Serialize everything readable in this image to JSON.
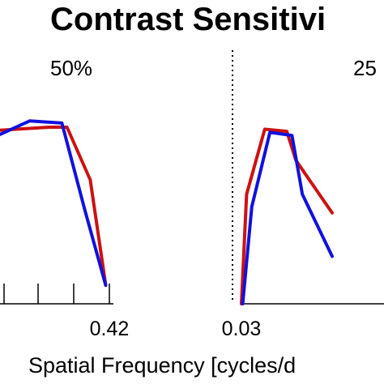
{
  "chart_data": {
    "type": "line",
    "title": "Contrast Sensitivi",
    "xlabel": "Spatial Frequency [cycles/d",
    "ylabel": "",
    "colors": [
      "#cc1111",
      "#1111dd"
    ],
    "panels": [
      {
        "label": "50%",
        "xlim": [
          0.01,
          0.45
        ],
        "ylim": [
          0,
          1
        ],
        "x_tick_labels": [
          {
            "value": 0.42,
            "label": "0.42"
          }
        ],
        "series": [
          {
            "color": "#cc1111",
            "points": [
              [
                0.01,
                0.84
              ],
              [
                0.2,
                0.855
              ],
              [
                0.27,
                0.855
              ],
              [
                0.36,
                0.6
              ],
              [
                0.42,
                0.09
              ]
            ]
          },
          {
            "color": "#1111dd",
            "points": [
              [
                0.01,
                0.82
              ],
              [
                0.125,
                0.885
              ],
              [
                0.25,
                0.875
              ],
              [
                0.34,
                0.45
              ],
              [
                0.42,
                0.09
              ]
            ]
          }
        ]
      },
      {
        "label": "25",
        "xlim": [
          0.03,
          0.14
        ],
        "ylim": [
          0,
          1
        ],
        "x_tick_labels": [
          {
            "value": 0.03,
            "label": "0.03"
          }
        ],
        "series": [
          {
            "color": "#cc1111",
            "points": [
              [
                0.03,
                0.0
              ],
              [
                0.034,
                0.53
              ],
              [
                0.048,
                0.845
              ],
              [
                0.065,
                0.835
              ],
              [
                0.072,
                0.695
              ],
              [
                0.1,
                0.44
              ]
            ]
          },
          {
            "color": "#1111dd",
            "points": [
              [
                0.031,
                0.0
              ],
              [
                0.038,
                0.47
              ],
              [
                0.052,
                0.83
              ],
              [
                0.069,
                0.815
              ],
              [
                0.077,
                0.53
              ],
              [
                0.1,
                0.23
              ]
            ]
          }
        ]
      }
    ]
  }
}
